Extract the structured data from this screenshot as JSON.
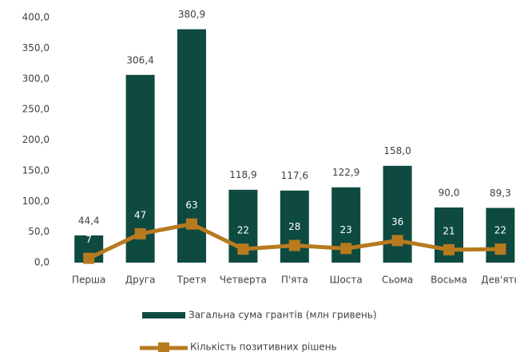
{
  "chart_data": {
    "type": "bar_line",
    "categories": [
      "Перша",
      "Друга",
      "Третя",
      "Четверта",
      "П'ята",
      "Шоста",
      "Сьома",
      "Восьма",
      "Дев'ять"
    ],
    "series": [
      {
        "name": "Загальна сума грантів (млн гривень)",
        "type": "bar",
        "color": "#0e4a40",
        "values": [
          44.4,
          306.4,
          380.9,
          118.9,
          117.6,
          122.9,
          158.0,
          90.0,
          89.3
        ],
        "value_labels": [
          "44,4",
          "306,4",
          "380,9",
          "118,9",
          "117,6",
          "122,9",
          "158,0",
          "90,0",
          "89,3"
        ]
      },
      {
        "name": "Кількість позитивних рішень",
        "type": "line",
        "color": "#b87a1e",
        "values": [
          7,
          47,
          63,
          22,
          28,
          23,
          36,
          21,
          22
        ]
      }
    ],
    "ylim": [
      0,
      400
    ],
    "yticks": [
      {
        "value": 0,
        "label": "0,0"
      },
      {
        "value": 50,
        "label": "50,0"
      },
      {
        "value": 100,
        "label": "100,0"
      },
      {
        "value": 150,
        "label": "150,0"
      },
      {
        "value": 200,
        "label": "200,0"
      },
      {
        "value": 250,
        "label": "250,0"
      },
      {
        "value": 300,
        "label": "300,0"
      },
      {
        "value": 350,
        "label": "350,0"
      },
      {
        "value": 400,
        "label": "400,0"
      }
    ],
    "grid": false
  }
}
